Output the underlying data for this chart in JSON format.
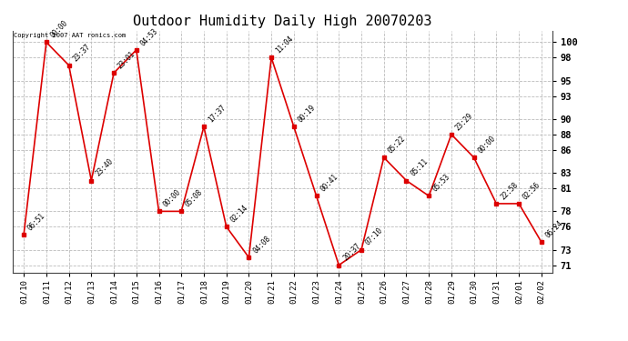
{
  "title": "Outdoor Humidity Daily High 20070203",
  "copyright": "Copyright 2007 AAT ronics.com",
  "x_labels": [
    "01/10",
    "01/11",
    "01/12",
    "01/13",
    "01/14",
    "01/15",
    "01/16",
    "01/17",
    "01/18",
    "01/19",
    "01/20",
    "01/21",
    "01/22",
    "01/23",
    "01/24",
    "01/25",
    "01/26",
    "01/27",
    "01/28",
    "01/29",
    "01/30",
    "01/31",
    "02/01",
    "02/02"
  ],
  "y_values": [
    75,
    100,
    97,
    82,
    96,
    99,
    78,
    78,
    89,
    76,
    72,
    98,
    89,
    80,
    71,
    73,
    85,
    82,
    80,
    88,
    85,
    79,
    79,
    74
  ],
  "point_labels": [
    "06:51",
    "00:00",
    "23:37",
    "23:40",
    "23:01",
    "04:53",
    "00:00",
    "05:08",
    "17:37",
    "02:14",
    "04:08",
    "11:04",
    "00:19",
    "00:41",
    "20:37",
    "07:10",
    "05:22",
    "05:11",
    "05:53",
    "23:29",
    "00:00",
    "22:58",
    "02:56",
    "06:24"
  ],
  "line_color": "#dd0000",
  "marker_color": "#dd0000",
  "bg_color": "#ffffff",
  "grid_color": "#bbbbbb",
  "title_fontsize": 11,
  "ytick_values": [
    71,
    73,
    76,
    78,
    81,
    83,
    86,
    88,
    90,
    93,
    95,
    98,
    100
  ],
  "ylim": [
    70.0,
    101.5
  ],
  "xlim": [
    -0.5,
    23.5
  ],
  "figsize": [
    6.9,
    3.75
  ],
  "dpi": 100
}
